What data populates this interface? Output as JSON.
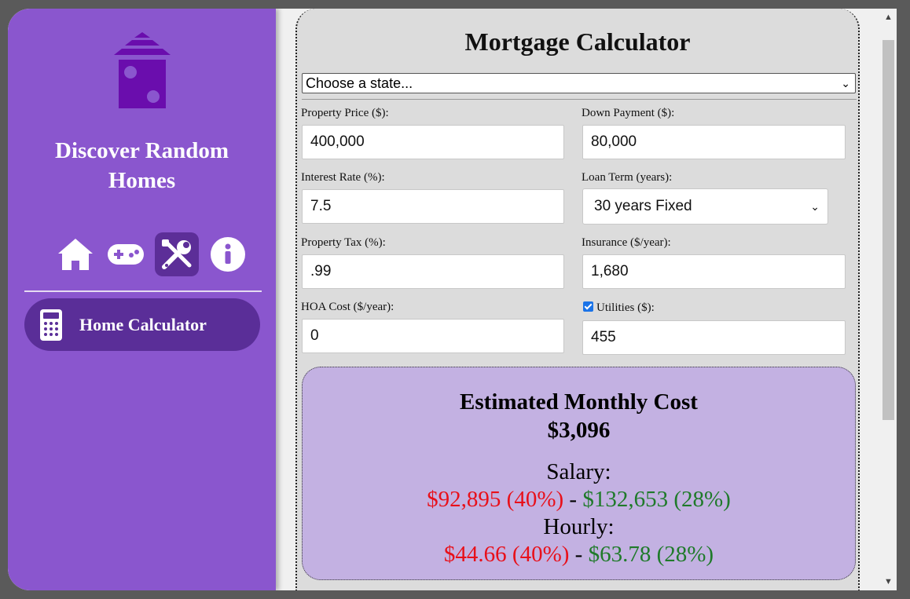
{
  "sidebar": {
    "brand_line1": "Discover Random",
    "brand_line2": "Homes",
    "nav_icons": [
      "home-icon",
      "gamepad-icon",
      "tools-icon",
      "info-icon"
    ],
    "active_nav": "tools-icon",
    "menu_item_label": "Home Calculator",
    "colors": {
      "sidebar": "#8a56ce",
      "active": "#5a2e98",
      "logo": "#6a0dad"
    }
  },
  "main": {
    "title": "Mortgage Calculator",
    "state_select": "Choose a state...",
    "fields": {
      "property_price_label": "Property Price ($):",
      "property_price_value": "400,000",
      "down_payment_label": "Down Payment ($):",
      "down_payment_value": "80,000",
      "interest_rate_label": "Interest Rate (%):",
      "interest_rate_value": "7.5",
      "loan_term_label": "Loan Term (years):",
      "loan_term_value": "30 years Fixed",
      "property_tax_label": "Property Tax (%):",
      "property_tax_value": ".99",
      "insurance_label": "Insurance ($/year):",
      "insurance_value": "1,680",
      "hoa_label": "HOA Cost ($/year):",
      "hoa_value": "0",
      "utilities_label": "Utilities ($):",
      "utilities_checked": true,
      "utilities_value": "455"
    },
    "result": {
      "title": "Estimated Monthly Cost",
      "total": "$3,096",
      "salary_label": "Salary:",
      "salary_low": "$92,895 (40%)",
      "salary_high": "$132,653 (28%)",
      "hourly_label": "Hourly:",
      "hourly_low": "$44.66 (40%)",
      "hourly_high": "$63.78 (28%)",
      "separator": " - ",
      "colors": {
        "low": "#e8101a",
        "high": "#1f7a2a",
        "background": "#c3b1e2"
      }
    }
  }
}
